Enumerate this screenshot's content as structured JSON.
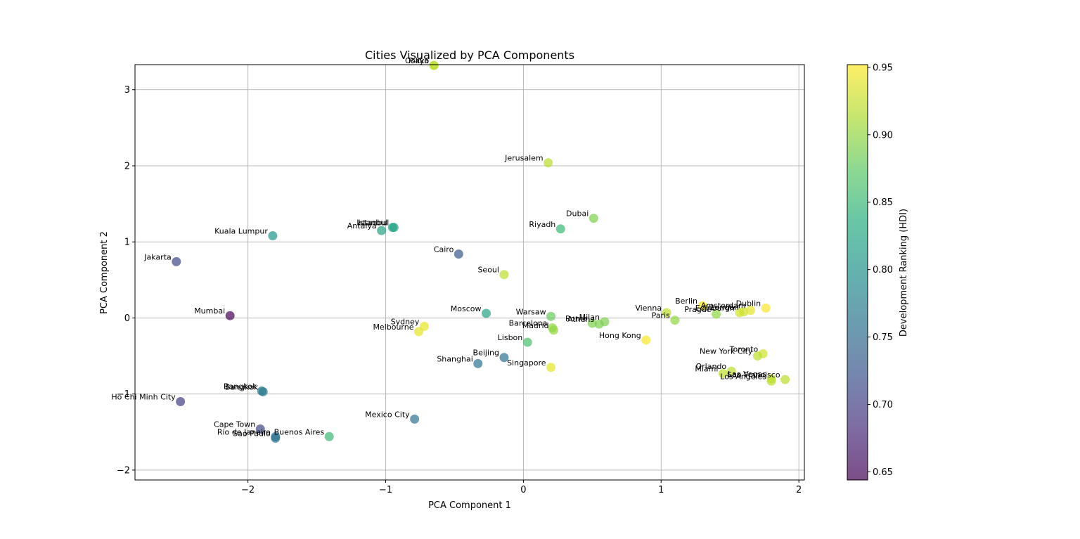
{
  "chart_data": {
    "type": "scatter",
    "title": "Cities Visualized by PCA Components",
    "xlabel": "PCA Component 1",
    "ylabel": "PCA Component 2",
    "xlim": [
      -2.82,
      2.04
    ],
    "ylim": [
      -2.13,
      3.33
    ],
    "xticks": [
      -2,
      -1,
      0,
      1,
      2
    ],
    "yticks": [
      -2,
      -1,
      0,
      1,
      2,
      3
    ],
    "xtick_labels": [
      "−2",
      "−1",
      "0",
      "1",
      "2"
    ],
    "ytick_labels": [
      "−2",
      "−1",
      "0",
      "1",
      "2",
      "3"
    ],
    "grid": true,
    "colorbar": {
      "label": "Development Ranking (HDI)",
      "min": 0.644,
      "max": 0.952,
      "ticks": [
        0.65,
        0.7,
        0.75,
        0.8,
        0.85,
        0.9,
        0.95
      ],
      "tick_labels": [
        "0.65",
        "0.70",
        "0.75",
        "0.80",
        "0.85",
        "0.90",
        "0.95"
      ],
      "colormap": "viridis"
    },
    "points": [
      {
        "label": "Tokyo",
        "x": -0.65,
        "y": 3.32,
        "hdi": 0.92
      },
      {
        "label": "Osaka",
        "x": -0.65,
        "y": 3.32,
        "hdi": 0.92
      },
      {
        "label": "Jerusalem",
        "x": 0.18,
        "y": 2.04,
        "hdi": 0.92
      },
      {
        "label": "Dubai",
        "x": 0.51,
        "y": 1.31,
        "hdi": 0.89
      },
      {
        "label": "Riyadh",
        "x": 0.27,
        "y": 1.17,
        "hdi": 0.85
      },
      {
        "label": "Istanbul",
        "x": -0.94,
        "y": 1.19,
        "hdi": 0.82
      },
      {
        "label": "Istanbul",
        "x": -0.95,
        "y": 1.19,
        "hdi": 0.82
      },
      {
        "label": "Antalya",
        "x": -1.03,
        "y": 1.15,
        "hdi": 0.82
      },
      {
        "label": "Kuala Lumpur",
        "x": -1.82,
        "y": 1.08,
        "hdi": 0.8
      },
      {
        "label": "Jakarta",
        "x": -2.52,
        "y": 0.74,
        "hdi": 0.71
      },
      {
        "label": "Cairo",
        "x": -0.47,
        "y": 0.84,
        "hdi": 0.73
      },
      {
        "label": "Seoul",
        "x": -0.14,
        "y": 0.57,
        "hdi": 0.92
      },
      {
        "label": "Mumbai",
        "x": -2.13,
        "y": 0.03,
        "hdi": 0.645
      },
      {
        "label": "Moscow",
        "x": -0.27,
        "y": 0.06,
        "hdi": 0.82
      },
      {
        "label": "Warsaw",
        "x": 0.2,
        "y": 0.02,
        "hdi": 0.88
      },
      {
        "label": "Barcelona",
        "x": 0.21,
        "y": -0.13,
        "hdi": 0.9
      },
      {
        "label": "Madrid",
        "x": 0.22,
        "y": -0.16,
        "hdi": 0.9
      },
      {
        "label": "Rome",
        "x": 0.5,
        "y": -0.07,
        "hdi": 0.89
      },
      {
        "label": "Athens",
        "x": 0.55,
        "y": -0.08,
        "hdi": 0.89
      },
      {
        "label": "Milan",
        "x": 0.59,
        "y": -0.05,
        "hdi": 0.89
      },
      {
        "label": "Lisbon",
        "x": 0.03,
        "y": -0.32,
        "hdi": 0.86
      },
      {
        "label": "Sydney",
        "x": -0.72,
        "y": -0.11,
        "hdi": 0.94
      },
      {
        "label": "Melbourne",
        "x": -0.76,
        "y": -0.18,
        "hdi": 0.94
      },
      {
        "label": "Beijing",
        "x": -0.14,
        "y": -0.52,
        "hdi": 0.76
      },
      {
        "label": "Shanghai",
        "x": -0.33,
        "y": -0.6,
        "hdi": 0.76
      },
      {
        "label": "Singapore",
        "x": 0.2,
        "y": -0.65,
        "hdi": 0.94
      },
      {
        "label": "Hong Kong",
        "x": 0.89,
        "y": -0.29,
        "hdi": 0.95
      },
      {
        "label": "Vienna",
        "x": 1.04,
        "y": 0.07,
        "hdi": 0.92
      },
      {
        "label": "Paris",
        "x": 1.1,
        "y": -0.03,
        "hdi": 0.9
      },
      {
        "label": "Berlin",
        "x": 1.3,
        "y": 0.16,
        "hdi": 0.95
      },
      {
        "label": "Prague",
        "x": 1.4,
        "y": 0.05,
        "hdi": 0.9
      },
      {
        "label": "Edinburgh",
        "x": 1.57,
        "y": 0.07,
        "hdi": 0.93
      },
      {
        "label": "London",
        "x": 1.6,
        "y": 0.08,
        "hdi": 0.93
      },
      {
        "label": "Amsterdam",
        "x": 1.65,
        "y": 0.1,
        "hdi": 0.94
      },
      {
        "label": "Dublin",
        "x": 1.76,
        "y": 0.13,
        "hdi": 0.95
      },
      {
        "label": "Toronto",
        "x": 1.74,
        "y": -0.47,
        "hdi": 0.93
      },
      {
        "label": "New York City",
        "x": 1.7,
        "y": -0.5,
        "hdi": 0.92
      },
      {
        "label": "Orlando",
        "x": 1.51,
        "y": -0.7,
        "hdi": 0.92
      },
      {
        "label": "Miami",
        "x": 1.45,
        "y": -0.73,
        "hdi": 0.92
      },
      {
        "label": "Las Vegas",
        "x": 1.8,
        "y": -0.8,
        "hdi": 0.92
      },
      {
        "label": "San Francisco",
        "x": 1.9,
        "y": -0.81,
        "hdi": 0.92
      },
      {
        "label": "Los Angeles",
        "x": 1.8,
        "y": -0.83,
        "hdi": 0.92
      },
      {
        "label": "Bangkok",
        "x": -1.89,
        "y": -0.97,
        "hdi": 0.77
      },
      {
        "label": "Bangkok",
        "x": -1.9,
        "y": -0.96,
        "hdi": 0.77
      },
      {
        "label": "Ho Chi Minh City",
        "x": -2.49,
        "y": -1.1,
        "hdi": 0.7
      },
      {
        "label": "Mexico City",
        "x": -0.79,
        "y": -1.33,
        "hdi": 0.76
      },
      {
        "label": "Cape Town",
        "x": -1.91,
        "y": -1.46,
        "hdi": 0.71
      },
      {
        "label": "Rio de Janeiro",
        "x": -1.8,
        "y": -1.56,
        "hdi": 0.76
      },
      {
        "label": "Sao Paulo",
        "x": -1.8,
        "y": -1.58,
        "hdi": 0.76
      },
      {
        "label": "Buenos Aires",
        "x": -1.41,
        "y": -1.56,
        "hdi": 0.85
      }
    ]
  }
}
